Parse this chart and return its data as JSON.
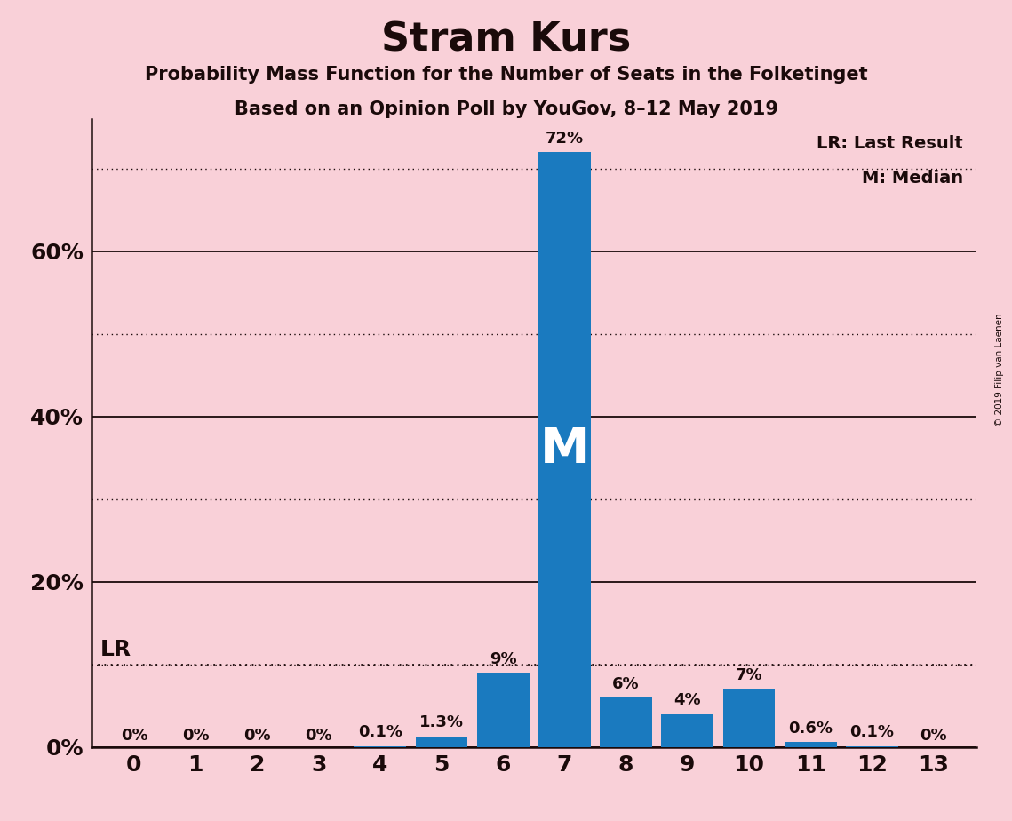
{
  "title": "Stram Kurs",
  "subtitle1": "Probability Mass Function for the Number of Seats in the Folketinget",
  "subtitle2": "Based on an Opinion Poll by YouGov, 8–12 May 2019",
  "copyright": "© 2019 Filip van Laenen",
  "seats": [
    0,
    1,
    2,
    3,
    4,
    5,
    6,
    7,
    8,
    9,
    10,
    11,
    12,
    13
  ],
  "probabilities": [
    0.0,
    0.0,
    0.0,
    0.0,
    0.001,
    0.013,
    0.09,
    0.72,
    0.06,
    0.04,
    0.07,
    0.006,
    0.001,
    0.0
  ],
  "labels": [
    "0%",
    "0%",
    "0%",
    "0%",
    "0.1%",
    "1.3%",
    "9%",
    "72%",
    "6%",
    "4%",
    "7%",
    "0.6%",
    "0.1%",
    "0%"
  ],
  "bar_color": "#1a7abf",
  "background_color": "#f9d0d8",
  "text_color": "#1a0a0a",
  "median_seat": 7,
  "lr_value": 0.1,
  "ylim": [
    0,
    0.76
  ],
  "ytick_solid": [
    0.0,
    0.2,
    0.4,
    0.6
  ],
  "ytick_dotted": [
    0.1,
    0.3,
    0.5,
    0.7
  ],
  "legend_lr": "LR: Last Result",
  "legend_m": "M: Median"
}
